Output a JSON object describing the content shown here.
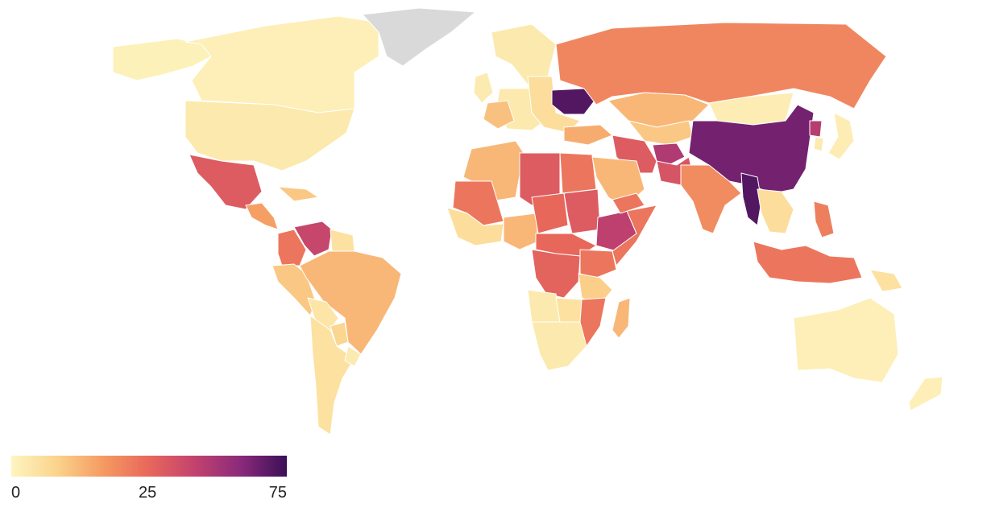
{
  "legend": {
    "min_label": "0",
    "mid_label": "25",
    "max_label": "75",
    "gradient": [
      "#fdf5c0",
      "#fbd38c",
      "#f59a62",
      "#e8675b",
      "#c2426e",
      "#8a2a7a",
      "#3b0f57"
    ]
  },
  "colors": {
    "no_data": "#d9d9d9",
    "background": "#ffffff",
    "border": "#ffffff"
  },
  "regions": [
    {
      "id": "alaska",
      "level": 0.02
    },
    {
      "id": "canada",
      "level": 0.03
    },
    {
      "id": "usa",
      "level": 0.06
    },
    {
      "id": "greenland",
      "level": null
    },
    {
      "id": "mexico",
      "level": 0.55
    },
    {
      "id": "central-america",
      "level": 0.32
    },
    {
      "id": "caribbean",
      "level": 0.2
    },
    {
      "id": "colombia",
      "level": 0.45
    },
    {
      "id": "venezuela",
      "level": 0.65
    },
    {
      "id": "guianas",
      "level": 0.1
    },
    {
      "id": "peru-ecuador",
      "level": 0.2
    },
    {
      "id": "brazil",
      "level": 0.25
    },
    {
      "id": "bolivia",
      "level": 0.08
    },
    {
      "id": "paraguay",
      "level": 0.15
    },
    {
      "id": "argentina-chile",
      "level": 0.1
    },
    {
      "id": "uruguay",
      "level": 0.05
    },
    {
      "id": "west-europe",
      "level": 0.06
    },
    {
      "id": "france",
      "level": 0.22
    },
    {
      "id": "uk",
      "level": 0.05
    },
    {
      "id": "scandinavia",
      "level": 0.06
    },
    {
      "id": "east-europe",
      "level": 0.12
    },
    {
      "id": "ukraine",
      "level": 0.95
    },
    {
      "id": "turkey",
      "level": 0.28
    },
    {
      "id": "russia",
      "level": 0.4
    },
    {
      "id": "kazakhstan",
      "level": 0.25
    },
    {
      "id": "central-asia",
      "level": 0.2
    },
    {
      "id": "mongolia",
      "level": 0.04
    },
    {
      "id": "china",
      "level": 0.88
    },
    {
      "id": "north-korea",
      "level": 0.7
    },
    {
      "id": "japan",
      "level": 0.04
    },
    {
      "id": "korea",
      "level": 0.05
    },
    {
      "id": "iran",
      "level": 0.55
    },
    {
      "id": "afghanistan",
      "level": 0.72
    },
    {
      "id": "pakistan",
      "level": 0.58
    },
    {
      "id": "india",
      "level": 0.38
    },
    {
      "id": "myanmar",
      "level": 0.95
    },
    {
      "id": "indochina",
      "level": 0.12
    },
    {
      "id": "philippines",
      "level": 0.42
    },
    {
      "id": "indonesia",
      "level": 0.45
    },
    {
      "id": "png",
      "level": 0.1
    },
    {
      "id": "australia",
      "level": 0.03
    },
    {
      "id": "new-zealand",
      "level": 0.03
    },
    {
      "id": "maghreb",
      "level": 0.25
    },
    {
      "id": "libya",
      "level": 0.55
    },
    {
      "id": "egypt",
      "level": 0.45
    },
    {
      "id": "mali",
      "level": 0.45
    },
    {
      "id": "west-africa-coast",
      "level": 0.12
    },
    {
      "id": "nigeria",
      "level": 0.25
    },
    {
      "id": "sahel",
      "level": 0.5
    },
    {
      "id": "sudan",
      "level": 0.55
    },
    {
      "id": "ethiopia",
      "level": 0.68
    },
    {
      "id": "somalia",
      "level": 0.45
    },
    {
      "id": "arabia",
      "level": 0.25
    },
    {
      "id": "yemen",
      "level": 0.45
    },
    {
      "id": "central-africa",
      "level": 0.5
    },
    {
      "id": "drc",
      "level": 0.52
    },
    {
      "id": "east-africa",
      "level": 0.45
    },
    {
      "id": "tanzania",
      "level": 0.18
    },
    {
      "id": "angola",
      "level": 0.06
    },
    {
      "id": "zambia",
      "level": 0.1
    },
    {
      "id": "mozambique",
      "level": 0.45
    },
    {
      "id": "southern-africa",
      "level": 0.06
    },
    {
      "id": "madagascar",
      "level": 0.25
    }
  ]
}
